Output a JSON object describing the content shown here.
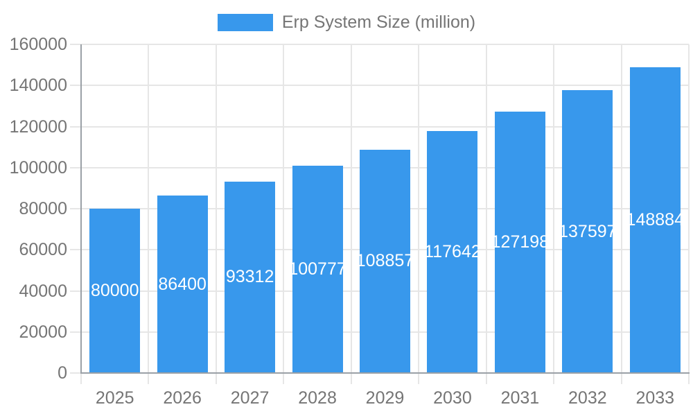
{
  "colors": {
    "bar": "#3898EC",
    "grid": "#E6E6E6",
    "axis": "#9AA0A6",
    "tick_text": "#757575",
    "value_text": "#FFFFFF",
    "background": "#FFFFFF"
  },
  "chart_data": {
    "type": "bar",
    "title": "Erp System Size (million)",
    "categories": [
      "2025",
      "2026",
      "2027",
      "2028",
      "2029",
      "2030",
      "2031",
      "2032",
      "2033"
    ],
    "series": [
      {
        "name": "Erp System Size (million)",
        "values": [
          80000,
          86400,
          93312,
          100777,
          108857,
          117642,
          127198,
          137597,
          148884
        ]
      }
    ],
    "ylim": [
      0,
      160000
    ],
    "yticks": [
      0,
      20000,
      40000,
      60000,
      80000,
      100000,
      120000,
      140000,
      160000
    ],
    "grid": true,
    "legend_position": "top",
    "value_labels_visible": true
  }
}
